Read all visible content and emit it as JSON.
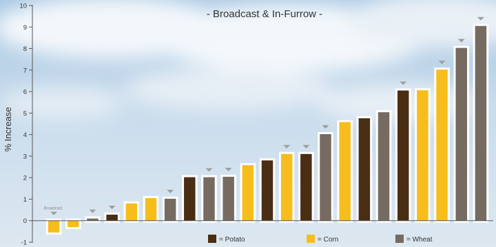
{
  "chart_data": {
    "type": "bar",
    "title": "",
    "subtitle": "- Broadcast & In-Furrow -",
    "xlabel": "",
    "ylabel": "% Increase",
    "ylim": [
      -1,
      10
    ],
    "yticks": [
      -1,
      0,
      1,
      2,
      3,
      4,
      5,
      6,
      7,
      8,
      9,
      10
    ],
    "grid": false,
    "legend_position": "bottom",
    "colors": {
      "potato": "#4a2e14",
      "corn": "#f7bd1c",
      "wheat": "#766b61",
      "marker": "#9e9e9e",
      "outline": "#ffffff",
      "axis": "#555555",
      "text": "#333333"
    },
    "series": [
      {
        "name": "Potato",
        "key": "potato"
      },
      {
        "name": "Corn",
        "key": "corn"
      },
      {
        "name": "Wheat",
        "key": "wheat"
      }
    ],
    "bars": [
      {
        "crop": "corn",
        "value": -0.55,
        "marker": true,
        "marker_label": "Broadcast"
      },
      {
        "crop": "corn",
        "value": -0.3,
        "marker": false
      },
      {
        "crop": "wheat",
        "value": 0.1,
        "marker": true
      },
      {
        "crop": "potato",
        "value": 0.28,
        "marker": true
      },
      {
        "crop": "corn",
        "value": 0.8,
        "marker": false
      },
      {
        "crop": "corn",
        "value": 1.05,
        "marker": false
      },
      {
        "crop": "wheat",
        "value": 1.02,
        "marker": true
      },
      {
        "crop": "potato",
        "value": 2.02,
        "marker": false
      },
      {
        "crop": "wheat",
        "value": 2.02,
        "marker": true
      },
      {
        "crop": "wheat",
        "value": 2.04,
        "marker": true
      },
      {
        "crop": "corn",
        "value": 2.58,
        "marker": false
      },
      {
        "crop": "potato",
        "value": 2.8,
        "marker": false
      },
      {
        "crop": "corn",
        "value": 3.1,
        "marker": true
      },
      {
        "crop": "potato",
        "value": 3.1,
        "marker": true
      },
      {
        "crop": "wheat",
        "value": 4.02,
        "marker": true
      },
      {
        "crop": "corn",
        "value": 4.58,
        "marker": false
      },
      {
        "crop": "potato",
        "value": 4.76,
        "marker": false
      },
      {
        "crop": "wheat",
        "value": 5.04,
        "marker": false
      },
      {
        "crop": "potato",
        "value": 6.05,
        "marker": true
      },
      {
        "crop": "corn",
        "value": 6.06,
        "marker": false
      },
      {
        "crop": "corn",
        "value": 7.02,
        "marker": true
      },
      {
        "crop": "wheat",
        "value": 8.03,
        "marker": true
      },
      {
        "crop": "wheat",
        "value": 9.05,
        "marker": true
      }
    ],
    "legend": [
      {
        "key": "potato",
        "label": "= Potato"
      },
      {
        "key": "corn",
        "label": "= Corn"
      },
      {
        "key": "wheat",
        "label": "= Wheat"
      }
    ]
  }
}
